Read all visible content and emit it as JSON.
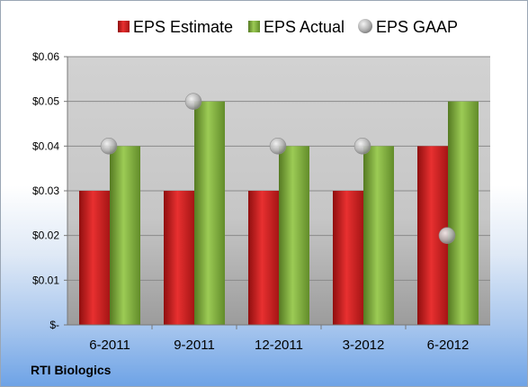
{
  "company_label": "RTI Biologics",
  "colors": {
    "estimate": "#d42424",
    "actual": "#7faf3a",
    "gaap": "#b8b8b8",
    "plot_background": "#c9c9c9"
  },
  "chart_data": {
    "type": "bar",
    "categories": [
      "6-2011",
      "9-2011",
      "12-2011",
      "3-2012",
      "6-2012"
    ],
    "series": [
      {
        "name": "EPS Estimate",
        "type": "bar",
        "values": [
          0.03,
          0.03,
          0.03,
          0.03,
          0.04
        ]
      },
      {
        "name": "EPS Actual",
        "type": "bar",
        "values": [
          0.04,
          0.05,
          0.04,
          0.04,
          0.05
        ]
      },
      {
        "name": "EPS GAAP",
        "type": "scatter",
        "values": [
          0.04,
          0.05,
          0.04,
          0.04,
          0.02
        ]
      }
    ],
    "y_ticks": [
      {
        "value": 0,
        "label": "$-"
      },
      {
        "value": 0.01,
        "label": "$0.01"
      },
      {
        "value": 0.02,
        "label": "$0.02"
      },
      {
        "value": 0.03,
        "label": "$0.03"
      },
      {
        "value": 0.04,
        "label": "$0.04"
      },
      {
        "value": 0.05,
        "label": "$0.05"
      },
      {
        "value": 0.06,
        "label": "$0.06"
      }
    ],
    "ylim": [
      0,
      0.06
    ],
    "grid": true,
    "legend_position": "top"
  }
}
